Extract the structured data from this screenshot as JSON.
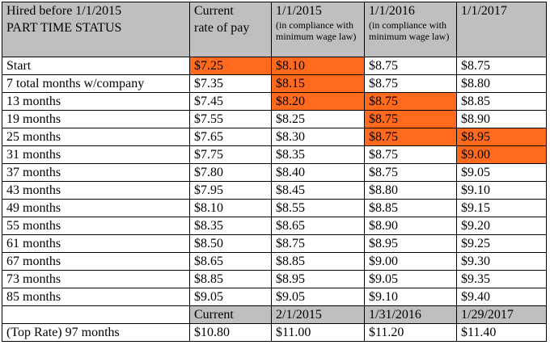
{
  "header": {
    "col0_line1": "Hired before 1/1/2015",
    "col0_line2": "PART TIME STATUS",
    "col1_line1": "Current",
    "col1_line2": "rate of pay",
    "col2_title": "1/1/2015",
    "col2_note": "(in compliance with minimum wage law)",
    "col3_title": "1/1/2016",
    "col3_note": "(in compliance with minimum wage law)",
    "col4_title": "1/1/2017"
  },
  "rows": [
    {
      "label": "Start",
      "current": "$7.25",
      "y2015": "$8.10",
      "y2016": "$8.75",
      "y2017": "$8.75",
      "hl": [
        true,
        true,
        false,
        false
      ]
    },
    {
      "label": "7 total months w/company",
      "current": "$7.35",
      "y2015": "$8.15",
      "y2016": "$8.75",
      "y2017": "$8.80",
      "hl": [
        false,
        true,
        false,
        false
      ]
    },
    {
      "label": "13 months",
      "current": "$7.45",
      "y2015": "$8.20",
      "y2016": "$8.75",
      "y2017": "$8.85",
      "hl": [
        false,
        true,
        true,
        false
      ]
    },
    {
      "label": "19 months",
      "current": "$7.55",
      "y2015": "$8.25",
      "y2016": "$8.75",
      "y2017": "$8.90",
      "hl": [
        false,
        false,
        true,
        false
      ]
    },
    {
      "label": "25 months",
      "current": "$7.65",
      "y2015": "$8.30",
      "y2016": "$8.75",
      "y2017": "$8.95",
      "hl": [
        false,
        false,
        true,
        true
      ]
    },
    {
      "label": "31 months",
      "current": "$7.75",
      "y2015": "$8.35",
      "y2016": "$8.75",
      "y2017": "$9.00",
      "hl": [
        false,
        false,
        false,
        true
      ]
    },
    {
      "label": "37 months",
      "current": "$7.80",
      "y2015": "$8.40",
      "y2016": "$8.75",
      "y2017": "$9.05",
      "hl": [
        false,
        false,
        false,
        false
      ]
    },
    {
      "label": "43 months",
      "current": "$7.95",
      "y2015": "$8.45",
      "y2016": "$8.80",
      "y2017": "$9.10",
      "hl": [
        false,
        false,
        false,
        false
      ]
    },
    {
      "label": "49 months",
      "current": "$8.10",
      "y2015": "$8.55",
      "y2016": "$8.85",
      "y2017": "$9.15",
      "hl": [
        false,
        false,
        false,
        false
      ]
    },
    {
      "label": "55 months",
      "current": "$8.35",
      "y2015": "$8.65",
      "y2016": "$8.90",
      "y2017": "$9.20",
      "hl": [
        false,
        false,
        false,
        false
      ]
    },
    {
      "label": "61 months",
      "current": "$8.50",
      "y2015": "$8.75",
      "y2016": "$8.95",
      "y2017": "$9.25",
      "hl": [
        false,
        false,
        false,
        false
      ]
    },
    {
      "label": "67 months",
      "current": "$8.65",
      "y2015": "$8.85",
      "y2016": "$9.00",
      "y2017": "$9.30",
      "hl": [
        false,
        false,
        false,
        false
      ]
    },
    {
      "label": "73 months",
      "current": "$8.85",
      "y2015": "$8.95",
      "y2016": "$9.05",
      "y2017": "$9.35",
      "hl": [
        false,
        false,
        false,
        false
      ]
    },
    {
      "label": "85 months",
      "current": "$9.05",
      "y2015": "$9.05",
      "y2016": "$9.10",
      "y2017": "$9.40",
      "hl": [
        false,
        false,
        false,
        false
      ]
    }
  ],
  "top_rate_header": {
    "current": "Current",
    "y2015": "2/1/2015",
    "y2016": "1/31/2016",
    "y2017": "1/29/2017"
  },
  "top_rate": {
    "label": "(Top Rate) 97 months",
    "current": "$10.80",
    "y2015": "$11.00",
    "y2016": "$11.20",
    "y2017": "$11.40"
  },
  "colors": {
    "header_bg": "#bfbfbf",
    "highlight": "#ff6a1f"
  }
}
